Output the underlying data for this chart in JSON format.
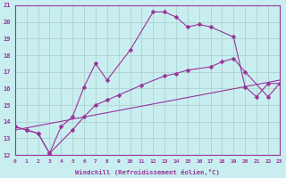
{
  "xlabel": "Windchill (Refroidissement éolien,°C)",
  "xlim": [
    0,
    23
  ],
  "ylim": [
    12,
    21
  ],
  "yticks": [
    12,
    13,
    14,
    15,
    16,
    17,
    18,
    19,
    20,
    21
  ],
  "xticks": [
    0,
    1,
    2,
    3,
    4,
    5,
    6,
    7,
    8,
    9,
    10,
    11,
    12,
    13,
    14,
    15,
    16,
    17,
    18,
    19,
    20,
    21,
    22,
    23
  ],
  "bg_color": "#c8eef0",
  "line_color": "#993399",
  "grid_color": "#aacccc",
  "line1_x": [
    0,
    1,
    2,
    3,
    4,
    5,
    6,
    7,
    8,
    10,
    12,
    13,
    14,
    15,
    16,
    17,
    19,
    20,
    21,
    22,
    23
  ],
  "line1_y": [
    13.7,
    13.5,
    13.3,
    12.1,
    13.7,
    14.3,
    16.1,
    17.5,
    16.5,
    18.3,
    20.6,
    20.6,
    20.3,
    19.7,
    19.85,
    19.7,
    19.1,
    16.1,
    15.5,
    16.3,
    16.3
  ],
  "line2_x": [
    0,
    1,
    2,
    3,
    5,
    6,
    7,
    8,
    9,
    11,
    13,
    14,
    15,
    17,
    18,
    19,
    20,
    22,
    23
  ],
  "line2_y": [
    13.7,
    13.5,
    13.3,
    12.1,
    13.5,
    14.3,
    15.0,
    15.3,
    15.6,
    16.2,
    16.75,
    16.9,
    17.1,
    17.3,
    17.6,
    17.8,
    17.0,
    15.5,
    16.3
  ],
  "line3_x": [
    0,
    23
  ],
  "line3_y": [
    13.5,
    16.5
  ]
}
